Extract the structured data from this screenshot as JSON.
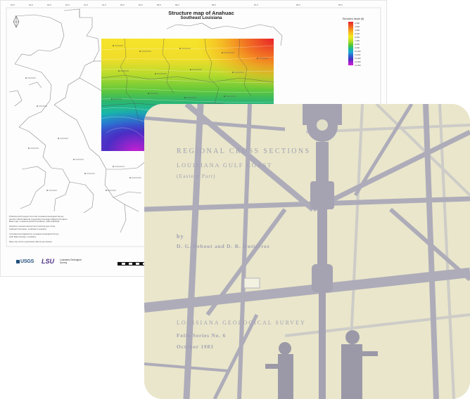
{
  "map": {
    "title": "Structure map of Anahuac",
    "subtitle": "Southeast Louisiana",
    "legend": {
      "title": "Elevation depth (ft)",
      "labels": [
        "2,000",
        "3,000",
        "4,000",
        "5,000",
        "6,000",
        "7,000",
        "8,000",
        "9,000",
        "10,000",
        "11,000",
        "12,000",
        "13,000",
        "14,000"
      ]
    },
    "notes": [
      "Produced with support from the Louisiana Geological Survey",
      "and the USGS National Cooperative Geologic Mapping Program.",
      "Base map: Louisiana parish boundaries, state highways.",
      "",
      "Structure contours derived from well log tops of the",
      "Anahuac Formation, southeast Louisiana.",
      "",
      "Compiled and digitized by Louisiana Geological Survey",
      "staff, Baton Rouge, Louisiana.",
      "",
      "Map may not be reproduced without permission."
    ],
    "logos": {
      "usgs": "USGS",
      "lsu": "LSU",
      "lgs_line1": "Louisiana Geological",
      "lgs_line2": "Survey"
    }
  },
  "cover": {
    "title_line1": "REGIONAL  CROSS  SECTIONS",
    "title_line2": "LOUISIANA  GULF  COAST",
    "title_line3": "(Eastern  Part)",
    "by": "by",
    "authors": "D. G. Bebout  and  D. R. Gutiérrez",
    "survey": "LOUISIANA  GEOLOGICAL  SURVEY",
    "series": "Folio  Series  No. 6",
    "date": "October  1983"
  },
  "colors": {
    "cover_paper": "#e9e6cb",
    "cover_ink": "#a2a0b1",
    "map_high": "#e8202a",
    "map_low": "#b21fd0"
  }
}
